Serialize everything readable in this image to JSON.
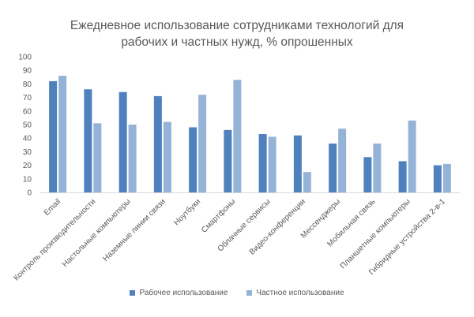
{
  "chart_data": {
    "type": "bar",
    "title_lines": [
      "Ежедневное использование сотрудниками технологий для",
      "рабочих и частных нужд, % опрошенных"
    ],
    "categories": [
      "Email",
      "Контроль производительности",
      "Настольные компьютеры",
      "Наземные линии связи",
      "Ноутбуки",
      "Смартфоны",
      "Облачные сервисы",
      "Видео-конференции",
      "Мессенджеры",
      "Мобильная связь",
      "Планшетные компьютеры",
      "Гибридные устройства 2-в-1"
    ],
    "series": [
      {
        "name": "Рабочее использование",
        "values": [
          82,
          76,
          74,
          71,
          48,
          46,
          43,
          42,
          36,
          26,
          23,
          20
        ]
      },
      {
        "name": "Частное использование",
        "values": [
          86,
          51,
          50,
          52,
          72,
          83,
          41,
          15,
          47,
          36,
          53,
          21
        ]
      }
    ],
    "ylim": [
      0,
      100
    ],
    "yticks": [
      0,
      10,
      20,
      30,
      40,
      50,
      60,
      70,
      80,
      90,
      100
    ],
    "grid": false,
    "legend_position": "bottom",
    "colors": [
      "#4f81bd",
      "#95b3d7"
    ]
  }
}
